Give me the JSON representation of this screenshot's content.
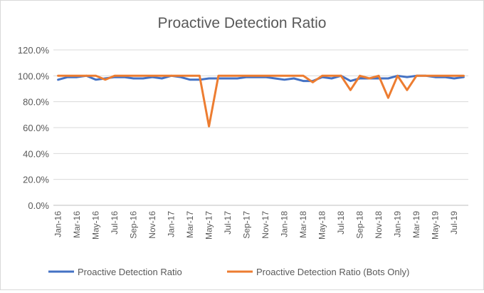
{
  "chart_data": {
    "type": "line",
    "title": "Proactive Detection Ratio",
    "xlabel": "",
    "ylabel": "",
    "ylim": [
      0,
      120
    ],
    "y_ticks": [
      "0.0%",
      "20.0%",
      "40.0%",
      "60.0%",
      "80.0%",
      "100.0%",
      "120.0%"
    ],
    "y_tick_values": [
      0,
      20,
      40,
      60,
      80,
      100,
      120
    ],
    "grid": "horizontal",
    "legend_position": "bottom",
    "categories": [
      "Jan-16",
      "Feb-16",
      "Mar-16",
      "Apr-16",
      "May-16",
      "Jun-16",
      "Jul-16",
      "Aug-16",
      "Sep-16",
      "Oct-16",
      "Nov-16",
      "Dec-16",
      "Jan-17",
      "Feb-17",
      "Mar-17",
      "Apr-17",
      "May-17",
      "Jun-17",
      "Jul-17",
      "Aug-17",
      "Sep-17",
      "Oct-17",
      "Nov-17",
      "Dec-17",
      "Jan-18",
      "Feb-18",
      "Mar-18",
      "Apr-18",
      "May-18",
      "Jun-18",
      "Jul-18",
      "Aug-18",
      "Sep-18",
      "Oct-18",
      "Nov-18",
      "Dec-18",
      "Jan-19",
      "Feb-19",
      "Mar-19",
      "Apr-19",
      "May-19",
      "Jun-19",
      "Jul-19",
      "Aug-19"
    ],
    "tick_labels": [
      "Jan-16",
      "Mar-16",
      "May-16",
      "Jul-16",
      "Sep-16",
      "Nov-16",
      "Jan-17",
      "Mar-17",
      "May-17",
      "Jul-17",
      "Sep-17",
      "Nov-17",
      "Jan-18",
      "Mar-18",
      "May-18",
      "Jul-18",
      "Sep-18",
      "Nov-18",
      "Jan-19",
      "Mar-19",
      "May-19",
      "Jul-19"
    ],
    "series": [
      {
        "name": "Proactive Detection Ratio",
        "color": "#4472c4",
        "values": [
          97,
          99,
          99,
          100,
          97,
          98,
          99,
          99,
          98,
          98,
          99,
          98,
          100,
          99,
          97,
          97,
          98,
          98,
          98,
          98,
          99,
          99,
          99,
          98,
          97,
          98,
          96,
          96,
          99,
          98,
          100,
          96,
          98,
          98,
          98,
          98,
          100,
          99,
          100,
          100,
          99,
          99,
          98,
          99
        ]
      },
      {
        "name": "Proactive Detection Ratio (Bots Only)",
        "color": "#ed7d31",
        "values": [
          100,
          100,
          100,
          100,
          100,
          97,
          100,
          100,
          100,
          100,
          100,
          100,
          100,
          100,
          100,
          100,
          61,
          100,
          100,
          100,
          100,
          100,
          100,
          100,
          100,
          100,
          100,
          95,
          100,
          100,
          100,
          89,
          100,
          98,
          100,
          83,
          100,
          89,
          100,
          100,
          100,
          100,
          100,
          100
        ]
      }
    ]
  }
}
